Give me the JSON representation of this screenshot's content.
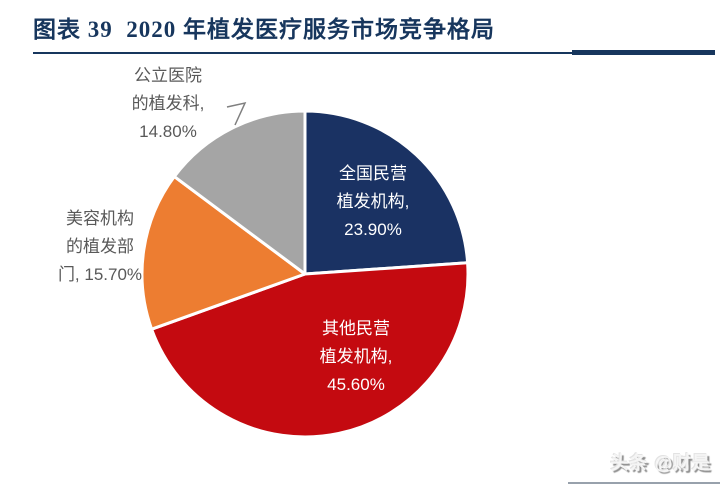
{
  "figure": {
    "title": "图表 39  2020 年植发医疗服务市场竞争格局",
    "accent_color": "#17365D"
  },
  "watermark": {
    "text": "头条 @财是"
  },
  "chart_data": {
    "type": "pie",
    "title": "2020年植发医疗服务市场竞争格局",
    "unit": "%",
    "direction": "clockwise",
    "start_angle_deg": 0,
    "legend": "none - labels placed on or beside slices",
    "slices": [
      {
        "name": "全国民营植发机构",
        "value": 23.9,
        "color": "#1A3263",
        "label_position": "inside",
        "label_color": "#FFFFFF",
        "label_lines": [
          "全国民营",
          "植发机构,",
          "23.90%"
        ]
      },
      {
        "name": "其他民营植发机构",
        "value": 45.6,
        "color": "#C40A10",
        "label_position": "inside",
        "label_color": "#FFFFFF",
        "label_lines": [
          "其他民营",
          "植发机构,",
          "45.60%"
        ]
      },
      {
        "name": "美容机构的植发部门",
        "value": 15.7,
        "color": "#ED7D31",
        "label_position": "outside",
        "label_color": "#595959",
        "label_lines": [
          "美容机构",
          "的植发部",
          "门, 15.70%"
        ]
      },
      {
        "name": "公立医院的植发科",
        "value": 14.8,
        "color": "#A5A5A5",
        "label_position": "outside",
        "label_color": "#595959",
        "label_lines": [
          "公立医院",
          "的植发科,",
          "14.80%"
        ]
      }
    ]
  }
}
